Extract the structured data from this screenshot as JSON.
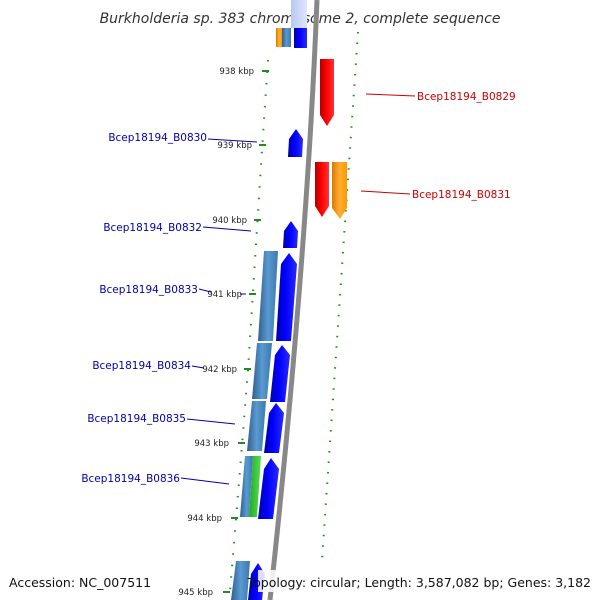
{
  "title": "Burkholderia sp. 383 chromosome 2, complete sequence",
  "footer": {
    "accession": "Accession: NC_007511",
    "summary": "Topology: circular; Length: 3,587,082 bp; Genes: 3,182"
  },
  "ticks": [
    "938 kbp",
    "939 kbp",
    "940 kbp",
    "941 kbp",
    "942 kbp",
    "943 kbp",
    "944 kbp",
    "945 kbp"
  ],
  "genes_left": [
    "Bcep18194_B0830",
    "Bcep18194_B0832",
    "Bcep18194_B0833",
    "Bcep18194_B0834",
    "Bcep18194_B0835",
    "Bcep18194_B0836"
  ],
  "genes_right": [
    "Bcep18194_B0829",
    "Bcep18194_B0831"
  ],
  "colors": {
    "left_label": "#0000aa",
    "right_label": "#cc0000",
    "cds_forward": "#0000ee",
    "cds_reverse": "#ee0000",
    "feature_blue": "#4682b4",
    "feature_orange": "#ff9900",
    "feature_green": "#33cc33",
    "backbone": "#888888",
    "dots": "#228b22"
  }
}
